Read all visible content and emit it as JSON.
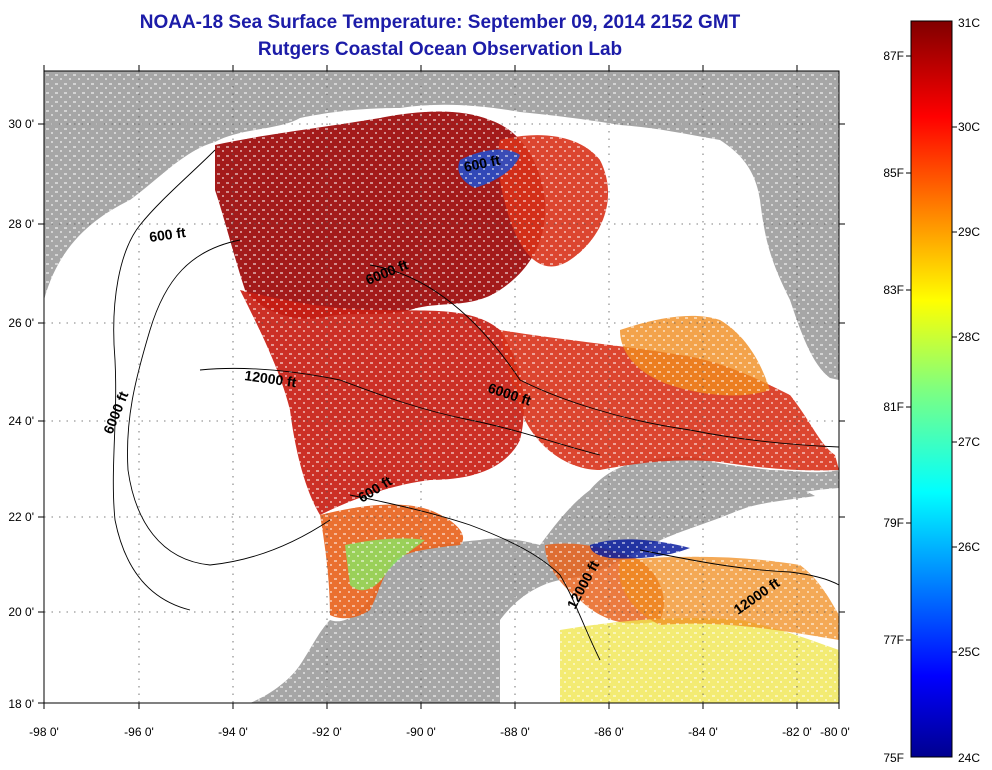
{
  "title": {
    "line1": "NOAA-18 Sea Surface Temperature:  September 09, 2014 2152 GMT",
    "line2": "Rutgers Coastal Ocean Observation Lab"
  },
  "axes": {
    "lon_labels": [
      "-98 0'",
      "-96 0'",
      "-94 0'",
      "-92 0'",
      "-90 0'",
      "-88 0'",
      "-86 0'",
      "-84 0'",
      "-82 0'",
      "-80 0'"
    ],
    "lat_labels": [
      "30 0'",
      "28 0'",
      "26 0'",
      "24 0'",
      "22 0'",
      "20 0'",
      "18 0'"
    ]
  },
  "contours": [
    "600 ft",
    "600 ft",
    "6000 ft",
    "12000 ft",
    "6000 ft",
    "6000 ft",
    "600 ft",
    "12000 ft",
    "12000 ft"
  ],
  "colorbar": {
    "celsius": [
      "31C",
      "30C",
      "29C",
      "28C",
      "27C",
      "26C",
      "25C",
      "24C"
    ],
    "fahrenheit": [
      "87F",
      "85F",
      "83F",
      "81F",
      "79F",
      "77F",
      "75F"
    ]
  },
  "colors": {
    "land": "#a6a6a6",
    "ocean_nodata": "#ffffff",
    "title": "#1c1ca8"
  }
}
